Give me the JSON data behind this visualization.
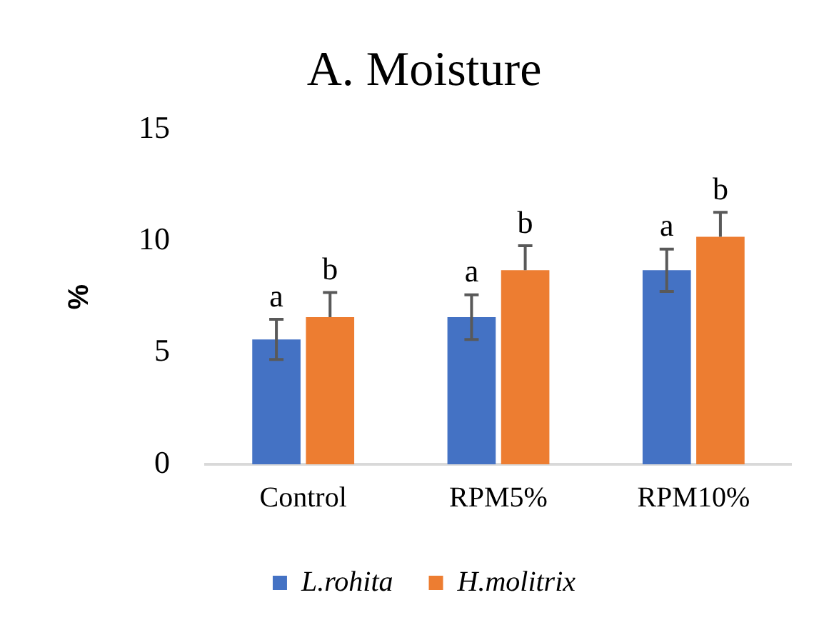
{
  "chart_data": {
    "type": "bar",
    "title": "A. Moisture",
    "ylabel": "%",
    "categories": [
      "Control",
      "RPM5%",
      "RPM10%"
    ],
    "series": [
      {
        "name": "L.rohita",
        "color": "#4472c4",
        "values": [
          5.6,
          6.6,
          8.7
        ],
        "errors": [
          0.9,
          1.0,
          0.95
        ],
        "value_labels": [
          "a",
          "a",
          "a"
        ]
      },
      {
        "name": "H.molitrix",
        "color": "#ed7d31",
        "values": [
          6.6,
          8.7,
          10.2
        ],
        "errors": [
          [
            6.6,
            7.7
          ],
          [
            8.7,
            9.8
          ],
          [
            10.2,
            11.3
          ]
        ],
        "value_labels": [
          "b",
          "b",
          "b"
        ]
      }
    ],
    "ylim": [
      0,
      15
    ],
    "yticks": [
      0,
      5,
      10,
      15
    ],
    "grid": false,
    "legend": "bottom"
  }
}
